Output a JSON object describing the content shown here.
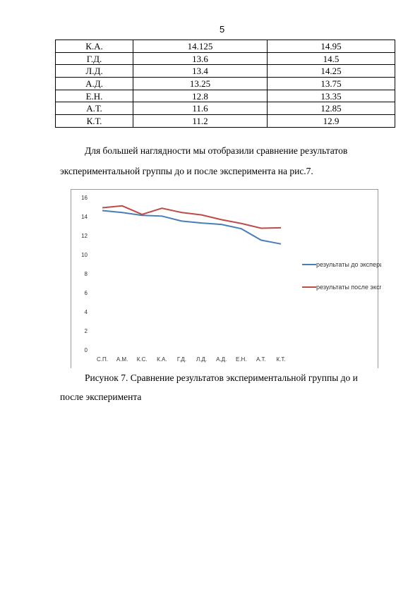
{
  "page_number": "5",
  "table": {
    "rows": [
      [
        "К.А.",
        "14.125",
        "14.95"
      ],
      [
        "Г.Д.",
        "13.6",
        "14.5"
      ],
      [
        "Л.Д.",
        "13.4",
        "14.25"
      ],
      [
        "А.Д.",
        "13.25",
        "13.75"
      ],
      [
        "Е.Н.",
        "12.8",
        "13.35"
      ],
      [
        "А.Т.",
        "11.6",
        "12.85"
      ],
      [
        "К.Т.",
        "11.2",
        "12.9"
      ]
    ]
  },
  "paragraph": {
    "lines": [
      "Для большей наглядности мы отобразили сравнение результатов",
      "экспериментальной группы до и после эксперимента на рис.7."
    ]
  },
  "chart_data": {
    "type": "line",
    "categories": [
      "С.П.",
      "А.М.",
      "К.С.",
      "К.А.",
      "Г.Д.",
      "Л.Д.",
      "А.Д.",
      "Е.Н.",
      "А.Т.",
      "К.Т."
    ],
    "series": [
      {
        "name": "результаты до эксперимента",
        "color": "#4a7ebb",
        "values": [
          14.7,
          14.5,
          14.2,
          14.125,
          13.6,
          13.4,
          13.25,
          12.8,
          11.6,
          11.2
        ]
      },
      {
        "name": "результаты после эксперимента",
        "color": "#be4b48",
        "values": [
          15.0,
          15.2,
          14.3,
          14.95,
          14.5,
          14.25,
          13.75,
          13.35,
          12.85,
          12.9
        ]
      }
    ],
    "ylim": [
      0,
      16
    ],
    "yticks": [
      0,
      2,
      4,
      6,
      8,
      10,
      12,
      14,
      16
    ],
    "legend": "right"
  },
  "caption": {
    "lines": [
      "Рисунок 7. Сравнение результатов экспериментальной группы до и",
      "после эксперимента"
    ]
  }
}
